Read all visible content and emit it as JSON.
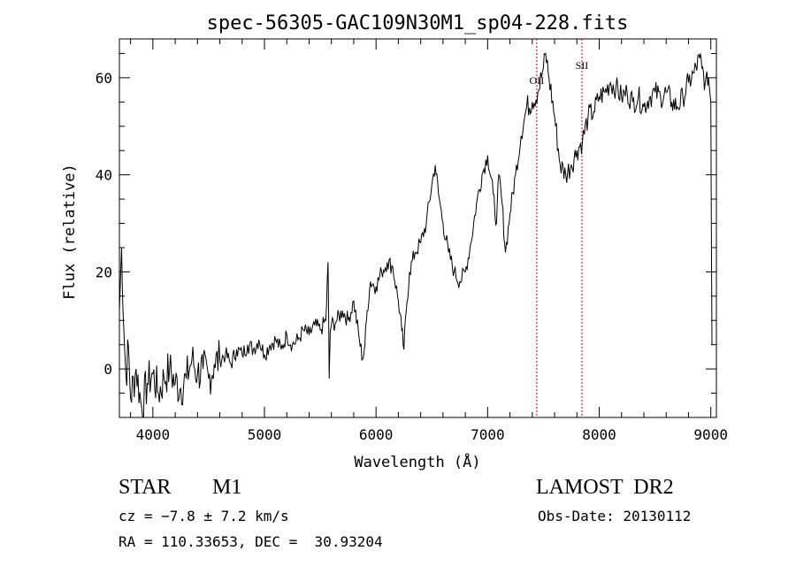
{
  "chart_data": {
    "type": "line",
    "title": "spec-56305-GAC109N30M1_sp04-228.fits",
    "xlabel": "Wavelength (Å)",
    "ylabel": "Flux (relative)",
    "xlim": [
      3700,
      9050
    ],
    "ylim": [
      -10,
      68
    ],
    "x_ticks": [
      4000,
      5000,
      6000,
      7000,
      8000,
      9000
    ],
    "y_ticks": [
      0,
      20,
      40,
      60
    ],
    "grid": false,
    "line_color": "#000000",
    "marker_color": "#cc0000",
    "lines": [
      {
        "label": "OII",
        "x": 7440
      },
      {
        "label": "SII",
        "x": 7845
      }
    ],
    "series": [
      {
        "x": [
          3700,
          3720,
          3740,
          3760,
          3780,
          3800,
          3850,
          3900,
          3950,
          4000,
          4050,
          4100,
          4150,
          4200,
          4250,
          4300,
          4350,
          4400,
          4450,
          4500,
          4550,
          4600,
          4650,
          4700,
          4750,
          4800,
          4850,
          4900,
          4950,
          5000,
          5050,
          5100,
          5150,
          5200,
          5250,
          5300,
          5350,
          5400,
          5450,
          5500,
          5550,
          5570,
          5580,
          5590,
          5600,
          5650,
          5700,
          5750,
          5800,
          5850,
          5880,
          5900,
          5920,
          5950,
          6000,
          6050,
          6100,
          6150,
          6200,
          6230,
          6250,
          6270,
          6300,
          6350,
          6400,
          6450,
          6500,
          6530,
          6560,
          6600,
          6650,
          6700,
          6750,
          6800,
          6850,
          6900,
          6950,
          7000,
          7050,
          7080,
          7100,
          7130,
          7160,
          7200,
          7250,
          7300,
          7350,
          7400,
          7450,
          7500,
          7520,
          7550,
          7600,
          7650,
          7700,
          7750,
          7800,
          7850,
          7900,
          7950,
          8000,
          8050,
          8100,
          8150,
          8200,
          8250,
          8300,
          8350,
          8400,
          8450,
          8500,
          8550,
          8600,
          8650,
          8700,
          8750,
          8800,
          8850,
          8900,
          8920,
          8950,
          8980,
          9000,
          9010
        ],
        "y": [
          12,
          25,
          8,
          -2,
          5,
          -6,
          0,
          -8,
          -3,
          -1,
          -5,
          -2,
          0,
          -3,
          -4,
          -2,
          2,
          -1,
          0,
          -2,
          1,
          2,
          3,
          1,
          4,
          3,
          5,
          4,
          6,
          3,
          5,
          6,
          4,
          7,
          5,
          6,
          8,
          7,
          9,
          8,
          10,
          22,
          -2,
          8,
          9,
          10,
          12,
          10,
          14,
          6,
          2,
          5,
          12,
          18,
          17,
          20,
          22,
          21,
          14,
          8,
          4,
          12,
          20,
          24,
          26,
          30,
          38,
          42,
          36,
          30,
          24,
          20,
          18,
          20,
          26,
          34,
          40,
          44,
          36,
          30,
          40,
          34,
          24,
          32,
          40,
          48,
          54,
          55,
          57,
          62,
          65,
          60,
          52,
          42,
          40,
          42,
          45,
          47,
          52,
          53,
          56,
          57,
          59,
          58,
          56,
          57,
          55,
          56,
          54,
          56,
          57,
          56,
          57,
          55,
          54,
          56,
          59,
          61,
          64,
          62,
          59,
          60,
          55,
          5
        ]
      }
    ]
  },
  "info": {
    "object_type": "STAR",
    "subclass": "M1",
    "survey": "LAMOST  DR2",
    "cz": "cz = −7.8 ± 7.2 km/s",
    "obs_date": "Obs-Date: 20130112",
    "radec": "RA = 110.33653, DEC =  30.93204"
  }
}
